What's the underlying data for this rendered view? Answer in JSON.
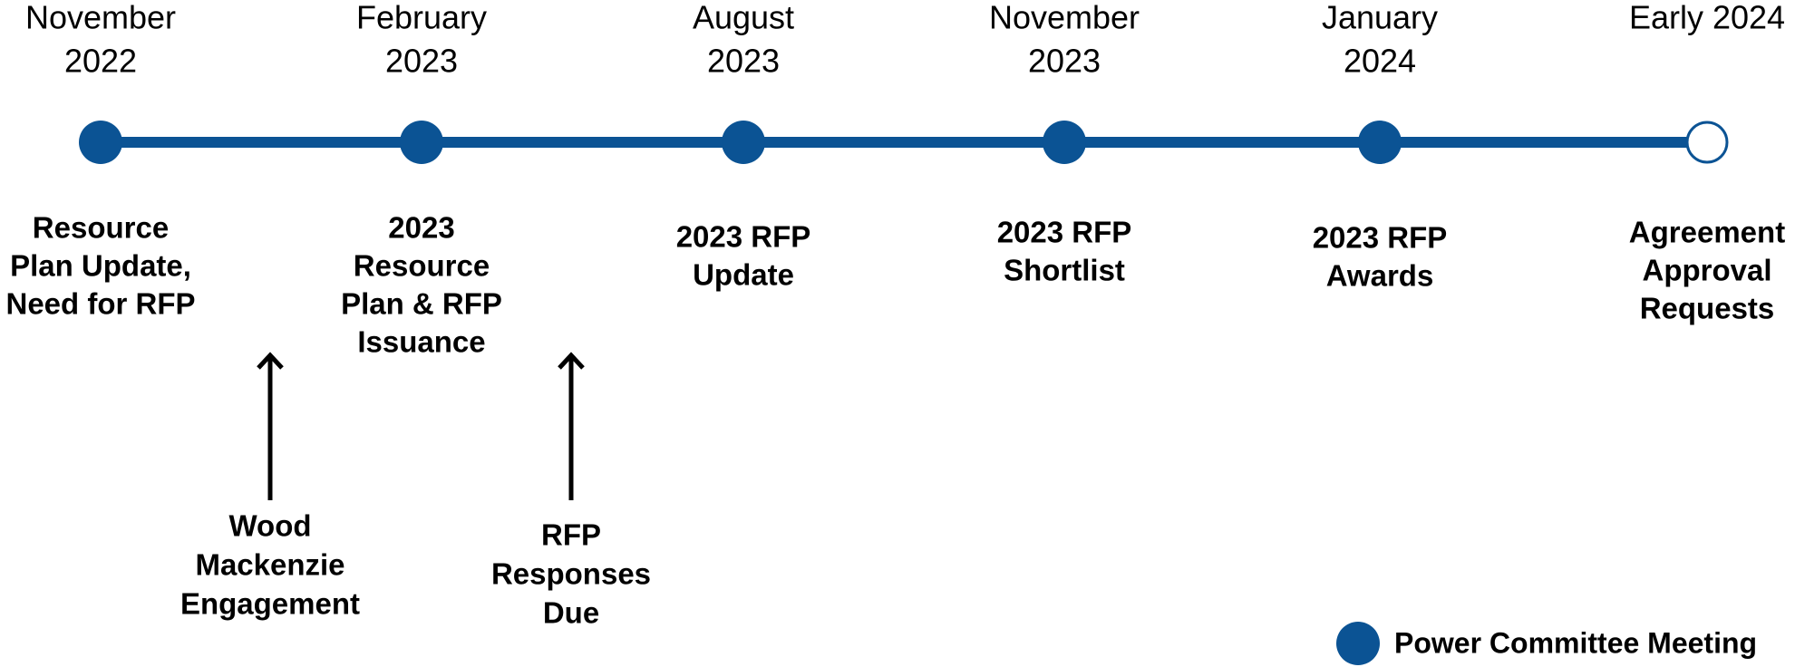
{
  "milestones": [
    {
      "date": [
        "November",
        "2022"
      ],
      "label": [
        "Resource",
        "Plan Update,",
        "Need for RFP"
      ]
    },
    {
      "date": [
        "February",
        "2023"
      ],
      "label": [
        "2023",
        "Resource",
        "Plan & RFP",
        "Issuance"
      ]
    },
    {
      "date": [
        "August",
        "2023"
      ],
      "label": [
        "2023 RFP",
        "Update"
      ]
    },
    {
      "date": [
        "November",
        "2023"
      ],
      "label": [
        "2023 RFP",
        "Shortlist"
      ]
    },
    {
      "date": [
        "January",
        "2024"
      ],
      "label": [
        "2023 RFP",
        "Awards"
      ]
    },
    {
      "date": [
        "Early 2024"
      ],
      "label": [
        "Agreement",
        "Approval",
        "Requests"
      ]
    }
  ],
  "notes": [
    {
      "label": [
        "Wood",
        "Mackenzie",
        "Engagement"
      ]
    },
    {
      "label": [
        "RFP",
        "Responses",
        "Due"
      ]
    }
  ],
  "legend": "Power Committee Meeting"
}
